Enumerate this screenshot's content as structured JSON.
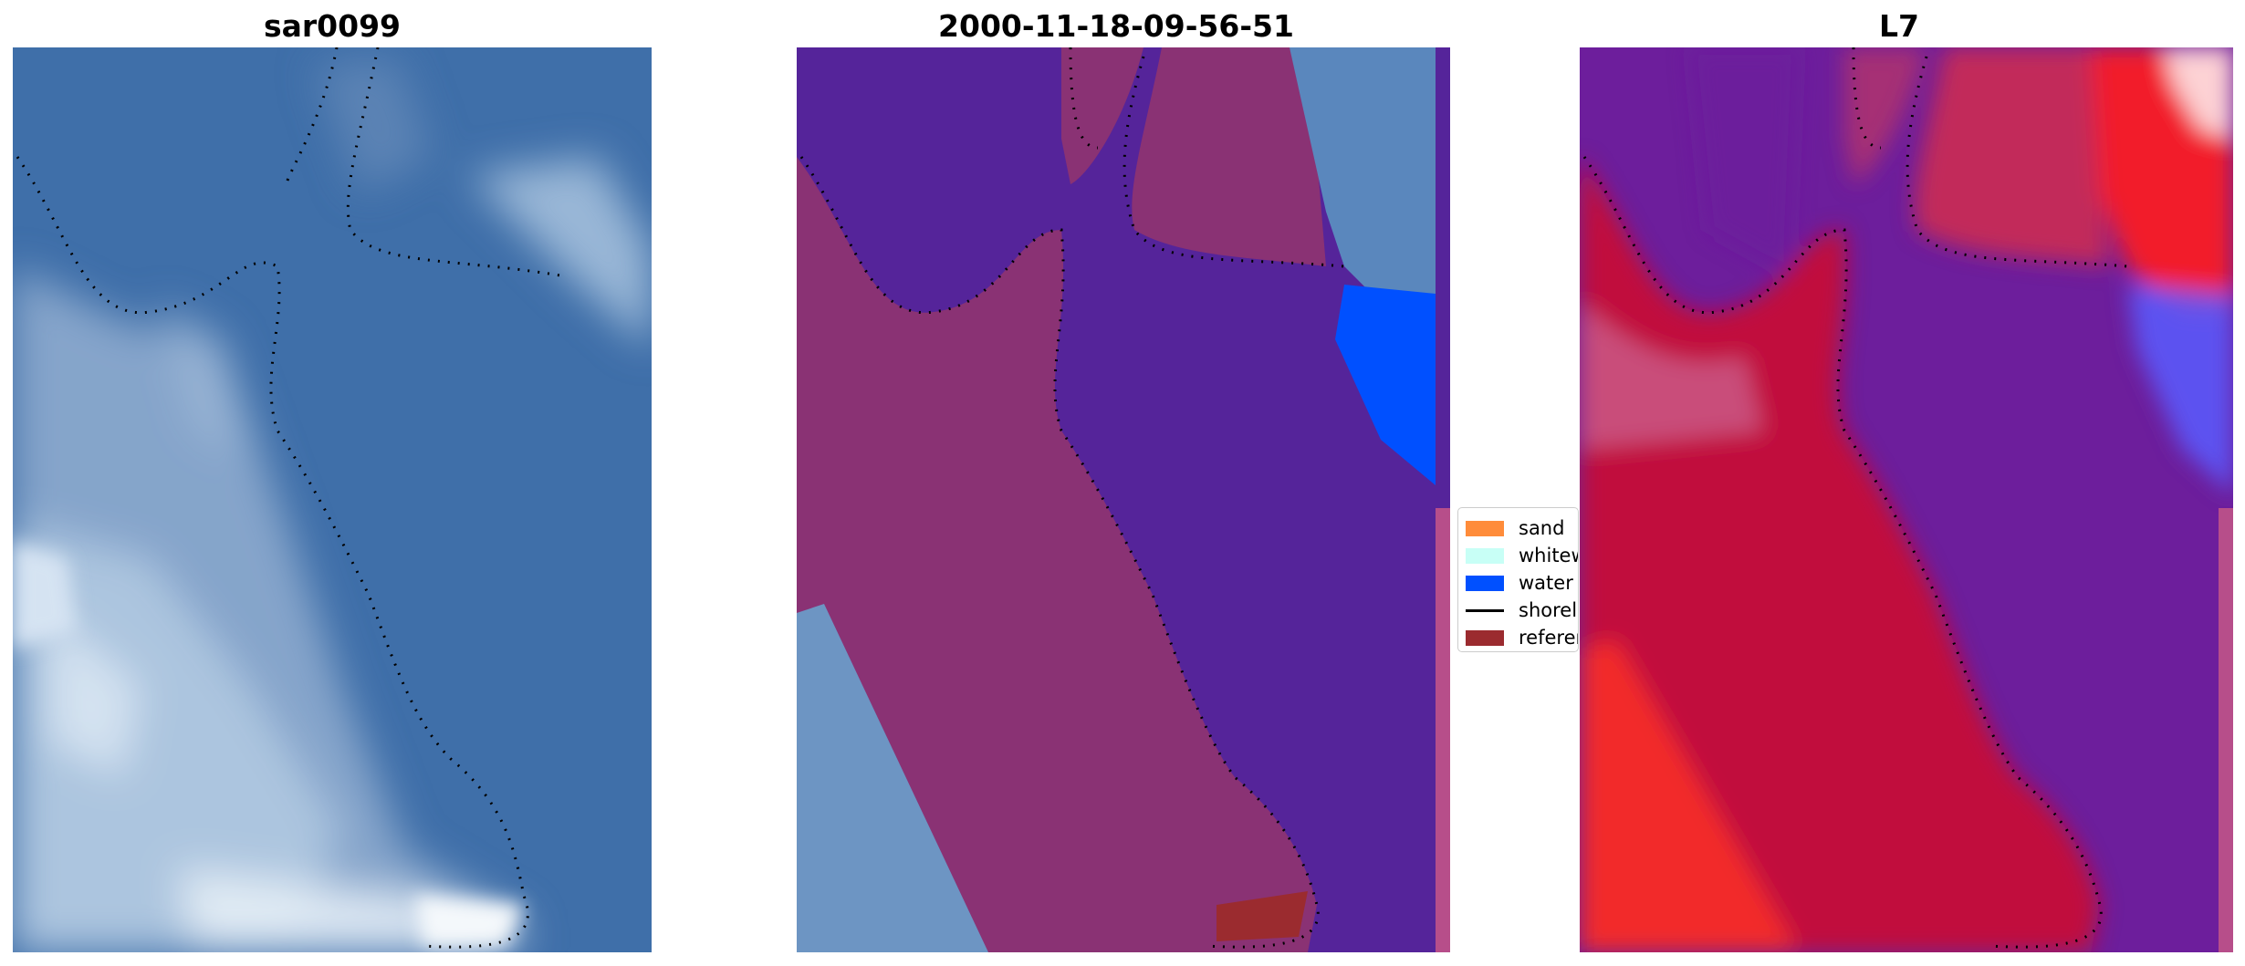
{
  "panels": [
    {
      "title": "sar0099"
    },
    {
      "title": "2000-11-18-09-56-51"
    },
    {
      "title": "L7"
    }
  ],
  "legend": {
    "items": [
      {
        "label": "sand",
        "color": "#ff8c3a",
        "type": "patch"
      },
      {
        "label": "whitewater",
        "color": "#c8fff6",
        "type": "patch"
      },
      {
        "label": "water",
        "color": "#0050ff",
        "type": "patch"
      },
      {
        "label": "shoreline",
        "color": "#000000",
        "type": "line"
      },
      {
        "label": "reference",
        "color": "#9b2b2f",
        "type": "patch"
      }
    ]
  },
  "colors": {
    "water_sar": "#3f6fa9",
    "foam": "#b9d0e6",
    "water_class": "#55249a",
    "land_class": "#8a3274",
    "water_patch": "#0050ff",
    "l7_red": "#c10f3c",
    "l7_purple": "#6d1e9c"
  }
}
